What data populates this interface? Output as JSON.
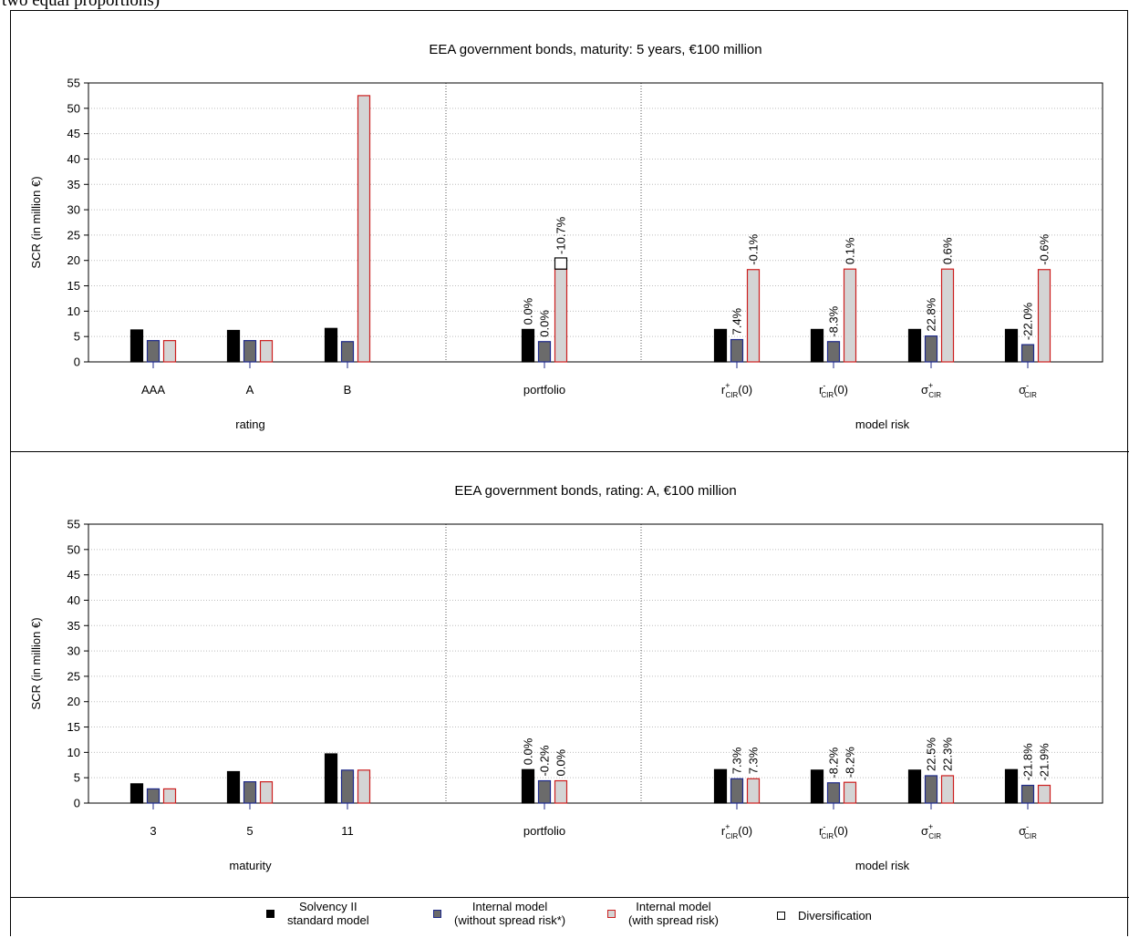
{
  "page_top_text": "two equal proportions)",
  "colors": {
    "solvency": "#000000",
    "internal_no_spread_fill": "#6b6b6b",
    "internal_no_spread_border": "#1f2a8a",
    "internal_spread_fill": "#d4d4d4",
    "internal_spread_border": "#cc1f1f",
    "diversification_fill": "#ffffff",
    "diversification_border": "#000000"
  },
  "legend": [
    {
      "line1": "Solvency II",
      "line2": "standard model",
      "swatch": "solvency"
    },
    {
      "line1": "Internal model",
      "line2": "(without spread risk*)",
      "swatch": "internal_no_spread"
    },
    {
      "line1": "Internal model",
      "line2": "(with spread risk)",
      "swatch": "internal_spread"
    },
    {
      "line1": "Diversification",
      "line2": "",
      "swatch": "diversification"
    }
  ],
  "chart_data": [
    {
      "type": "bar",
      "title": "EEA government bonds, maturity: 5 years, €100 million",
      "ylabel": "SCR (in million €)",
      "ylim": [
        0,
        55
      ],
      "yticks": [
        0,
        5,
        10,
        15,
        20,
        25,
        30,
        35,
        40,
        45,
        50,
        55
      ],
      "grid": true,
      "group_labels": [
        "rating",
        "model risk"
      ],
      "categories": [
        {
          "label": "AAA",
          "sup": "",
          "sub": "",
          "suffix": "",
          "group": "rating"
        },
        {
          "label": "A",
          "sup": "",
          "sub": "",
          "suffix": "",
          "group": "rating"
        },
        {
          "label": "B",
          "sup": "",
          "sub": "",
          "suffix": "",
          "group": "rating"
        },
        {
          "label": "portfolio",
          "sup": "",
          "sub": "",
          "suffix": "",
          "group": "portfolio"
        },
        {
          "label": "r",
          "sup": "+",
          "sub": "CIR",
          "suffix": "(0)",
          "group": "model risk"
        },
        {
          "label": "r",
          "sup": "-",
          "sub": "CIR",
          "suffix": "(0)",
          "group": "model risk"
        },
        {
          "label": "σ",
          "sup": "+",
          "sub": "CIR",
          "suffix": "",
          "group": "model risk"
        },
        {
          "label": "σ",
          "sup": "-",
          "sub": "CIR",
          "suffix": "",
          "group": "model risk"
        }
      ],
      "series": [
        {
          "name": "Solvency II standard model",
          "values": [
            6.3,
            6.2,
            6.6,
            6.4,
            6.4,
            6.4,
            6.4,
            6.4
          ],
          "labels": [
            "",
            "",
            "",
            "0.0%",
            "",
            "",
            "",
            ""
          ]
        },
        {
          "name": "Internal model (without spread risk*)",
          "values": [
            4.2,
            4.2,
            4.0,
            4.0,
            4.4,
            4.0,
            5.1,
            3.4
          ],
          "labels": [
            "",
            "",
            "",
            "0.0%",
            "7.4%",
            "-8.3%",
            "22.8%",
            "-22.0%"
          ]
        },
        {
          "name": "Internal model (with spread risk)",
          "values": [
            4.2,
            4.2,
            52.5,
            18.3,
            18.2,
            18.3,
            18.3,
            18.2
          ],
          "labels": [
            "",
            "",
            "",
            "",
            "-0.1%",
            "0.1%",
            "0.6%",
            "-0.6%"
          ]
        }
      ],
      "diversification": {
        "category": "portfolio",
        "bottom": 18.3,
        "top": 20.5,
        "label": "-10.7%"
      }
    },
    {
      "type": "bar",
      "title": "EEA government bonds, rating: A, €100 million",
      "ylabel": "SCR (in million €)",
      "ylim": [
        0,
        55
      ],
      "yticks": [
        0,
        5,
        10,
        15,
        20,
        25,
        30,
        35,
        40,
        45,
        50,
        55
      ],
      "grid": true,
      "group_labels": [
        "maturity",
        "model risk"
      ],
      "categories": [
        {
          "label": "3",
          "sup": "",
          "sub": "",
          "suffix": "",
          "group": "maturity"
        },
        {
          "label": "5",
          "sup": "",
          "sub": "",
          "suffix": "",
          "group": "maturity"
        },
        {
          "label": "11",
          "sup": "",
          "sub": "",
          "suffix": "",
          "group": "maturity"
        },
        {
          "label": "portfolio",
          "sup": "",
          "sub": "",
          "suffix": "",
          "group": "portfolio"
        },
        {
          "label": "r",
          "sup": "+",
          "sub": "CIR",
          "suffix": "(0)",
          "group": "model risk"
        },
        {
          "label": "r",
          "sup": "-",
          "sub": "CIR",
          "suffix": "(0)",
          "group": "model risk"
        },
        {
          "label": "σ",
          "sup": "+",
          "sub": "CIR",
          "suffix": "",
          "group": "model risk"
        },
        {
          "label": "σ",
          "sup": "-",
          "sub": "CIR",
          "suffix": "",
          "group": "model risk"
        }
      ],
      "series": [
        {
          "name": "Solvency II standard model",
          "values": [
            3.8,
            6.2,
            9.7,
            6.6,
            6.6,
            6.5,
            6.5,
            6.6
          ],
          "labels": [
            "",
            "",
            "",
            "0.0%",
            "",
            "",
            "",
            ""
          ]
        },
        {
          "name": "Internal model (without spread risk*)",
          "values": [
            2.8,
            4.2,
            6.5,
            4.4,
            4.8,
            4.0,
            5.4,
            3.5
          ],
          "labels": [
            "",
            "",
            "",
            "-0.2%",
            "7.3%",
            "-8.2%",
            "22.5%",
            "-21.8%"
          ]
        },
        {
          "name": "Internal model (with spread risk)",
          "values": [
            2.8,
            4.2,
            6.5,
            4.4,
            4.8,
            4.1,
            5.4,
            3.5
          ],
          "labels": [
            "",
            "",
            "",
            "0.0%",
            "7.3%",
            "-8.2%",
            "22.3%",
            "-21.9%"
          ]
        }
      ]
    }
  ]
}
